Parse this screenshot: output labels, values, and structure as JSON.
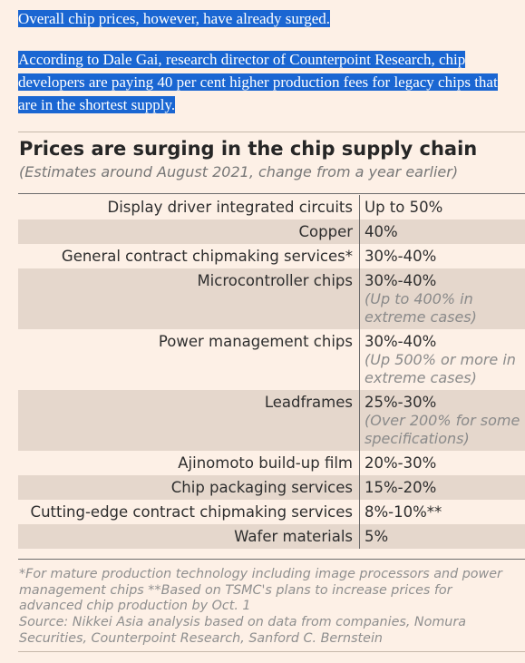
{
  "article": {
    "paragraph1": "Overall chip prices, however, have already surged.",
    "paragraph2": "According to Dale Gai, research director of Counterpoint Research, chip developers are paying 40 per cent higher production fees for legacy chips that are in the shortest supply."
  },
  "colors": {
    "selection_highlight": "#1a66d2",
    "page_background": "#fdf0e6",
    "row_shade": "#e5d7cc"
  },
  "chart_data": {
    "type": "table",
    "title": "Prices are surging in the chip supply chain",
    "subtitle": "(Estimates around August 2021, change from a year earlier)",
    "rows": [
      {
        "item": "Display driver integrated circuits",
        "change": "Up to 50%",
        "note": ""
      },
      {
        "item": "Copper",
        "change": "40%",
        "note": ""
      },
      {
        "item": "General contract chipmaking services*",
        "change": "30%-40%",
        "note": ""
      },
      {
        "item": "Microcontroller chips",
        "change": "30%-40%",
        "note": "(Up to 400% in extreme cases)"
      },
      {
        "item": "Power management chips",
        "change": "30%-40%",
        "note": "(Up 500% or more in extreme cases)"
      },
      {
        "item": "Leadframes",
        "change": "25%-30%",
        "note": "(Over 200% for some specifications)"
      },
      {
        "item": "Ajinomoto build-up film",
        "change": "20%-30%",
        "note": ""
      },
      {
        "item": "Chip packaging services",
        "change": "15%-20%",
        "note": ""
      },
      {
        "item": "Cutting-edge contract chipmaking services",
        "change": "8%-10%**",
        "note": ""
      },
      {
        "item": "Wafer materials",
        "change": "5%",
        "note": ""
      }
    ],
    "footnote": "*For mature production technology including image processors and power management chips **Based on TSMC's plans to increase prices for advanced chip production by Oct. 1",
    "source": "Source: Nikkei Asia analysis based on data from companies, Nomura Securities, Counterpoint Research, Sanford C. Bernstein"
  }
}
